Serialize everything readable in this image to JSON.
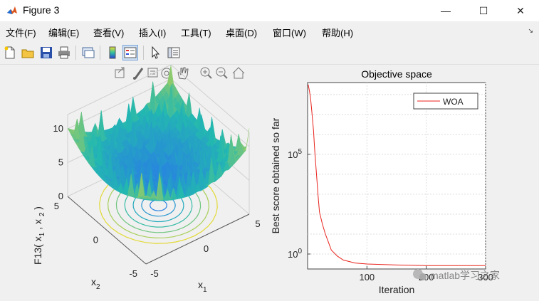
{
  "window": {
    "title": "Figure 3",
    "controls": {
      "minimize": "—",
      "maximize": "☐",
      "close": "✕"
    }
  },
  "menu": [
    "文件(F)",
    "编辑(E)",
    "查看(V)",
    "插入(I)",
    "工具(T)",
    "桌面(D)",
    "窗口(W)",
    "帮助(H)"
  ],
  "menu_overflow_icon": "chevron-icon",
  "toolbar_icons": [
    "new-figure-icon",
    "open-file-icon",
    "save-icon",
    "print-icon",
    "link-plot-icon",
    "colorbar-icon",
    "legend-icon",
    "select-pointer-icon",
    "property-inspector-icon"
  ],
  "axes_toolbar_icons": [
    "export-icon",
    "brush-icon",
    "data-tips-icon",
    "rotate-3d-icon",
    "pan-hand-icon",
    "zoom-in-icon",
    "zoom-out-icon",
    "restore-view-icon"
  ],
  "surface_plot": {
    "zlabel": "F13( x , x )",
    "zlabel_sub": [
      "1",
      "2"
    ],
    "xlabel": "x",
    "xlabel_sub": "1",
    "ylabel": "x",
    "ylabel_sub": "2",
    "z_ticks": [
      "0",
      "5",
      "10"
    ],
    "x_ticks": [
      "-5",
      "0",
      "5"
    ],
    "y_ticks": [
      "5",
      "0",
      "-5"
    ]
  },
  "chart_data": {
    "type": "line",
    "title": "Objective space",
    "xlabel": "Iteration",
    "ylabel": "Best score obtained so far",
    "yscale": "log",
    "y_tick_labels": [
      {
        "base": "10",
        "exp": "0"
      },
      {
        "base": "10",
        "exp": "5"
      }
    ],
    "x_ticks": [
      "100",
      "200",
      "300"
    ],
    "xlim": [
      0,
      300
    ],
    "grid": true,
    "legend_position": "top-right",
    "series": [
      {
        "name": "WOA",
        "color": "#e8231c",
        "x": [
          1,
          3,
          5,
          7,
          10,
          12,
          15,
          18,
          20,
          25,
          30,
          35,
          40,
          50,
          60,
          80,
          100,
          150,
          200,
          250,
          300
        ],
        "y_log10": [
          8.5,
          8.2,
          7.8,
          7.2,
          6.2,
          5.2,
          4.0,
          2.8,
          2.1,
          1.5,
          1.0,
          0.6,
          0.2,
          -0.1,
          -0.3,
          -0.45,
          -0.5,
          -0.55,
          -0.58,
          -0.58,
          -0.58
        ]
      }
    ]
  },
  "watermark": {
    "text": "matlab学习之家",
    "icon": "wechat-icon"
  },
  "colors": {
    "surface_low": "#2a6cf5",
    "surface_mid": "#22b8b0",
    "surface_high": "#f5dc2a",
    "woa_line": "#e8231c"
  }
}
